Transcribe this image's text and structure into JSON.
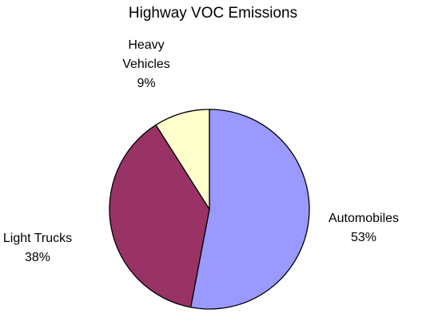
{
  "chart_data": {
    "type": "pie",
    "title": "Highway VOC Emissions",
    "categories": [
      "Automobiles",
      "Light Trucks",
      "Heavy Vehicles"
    ],
    "values": [
      53,
      38,
      9
    ],
    "value_labels": [
      "53%",
      "38%",
      "9%"
    ],
    "colors": [
      "#9999ff",
      "#993366",
      "#ffffcc"
    ]
  }
}
